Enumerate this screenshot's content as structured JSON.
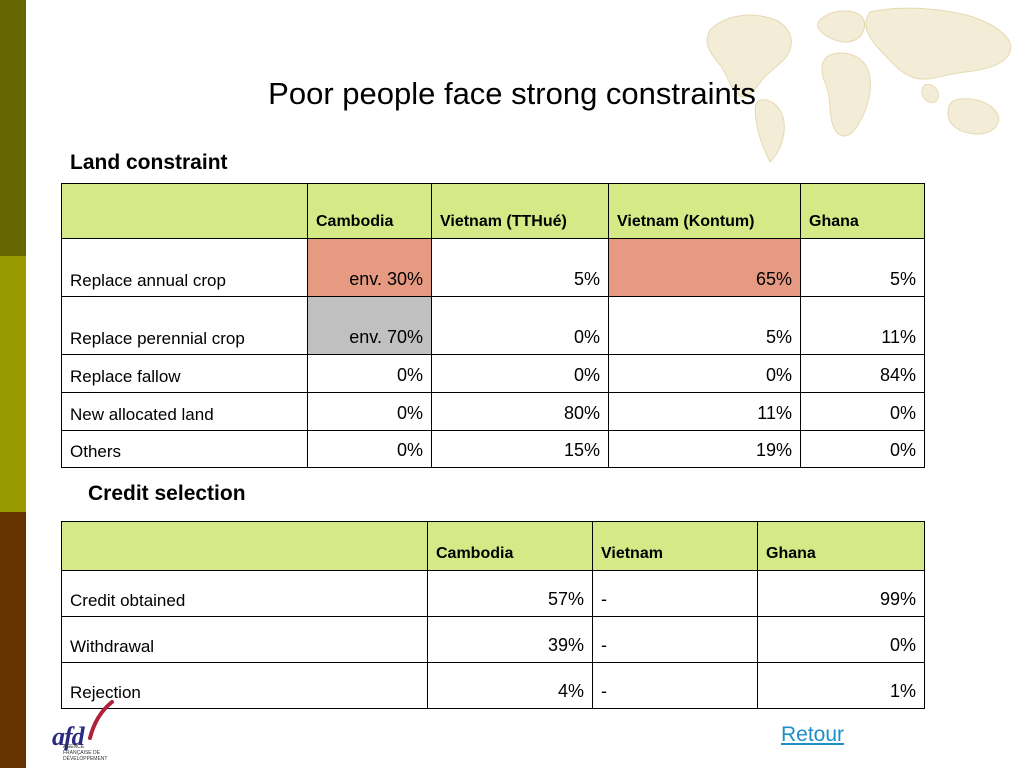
{
  "title": "Poor people face strong constraints",
  "land": {
    "heading": "Land constraint",
    "columns": [
      "",
      "Cambodia",
      "Vietnam (TTHué)",
      "Vietnam (Kontum)",
      "Ghana"
    ],
    "rows": [
      {
        "label": "Replace annual crop",
        "values": [
          "env. 30%",
          "5%",
          "65%",
          "5%"
        ]
      },
      {
        "label": "Replace perennial crop",
        "values": [
          "env. 70%",
          "0%",
          "5%",
          "11%"
        ]
      },
      {
        "label": "Replace fallow",
        "values": [
          "0%",
          "0%",
          "0%",
          "84%"
        ]
      },
      {
        "label": "New allocated land",
        "values": [
          "0%",
          "80%",
          "11%",
          "0%"
        ]
      },
      {
        "label": "Others",
        "values": [
          "0%",
          "15%",
          "19%",
          "0%"
        ]
      }
    ]
  },
  "credit": {
    "heading": "Credit selection",
    "columns": [
      "",
      "Cambodia",
      "Vietnam",
      "Ghana"
    ],
    "rows": [
      {
        "label": "Credit obtained",
        "values": [
          "57%",
          "-",
          "99%"
        ]
      },
      {
        "label": "Withdrawal",
        "values": [
          "39%",
          "-",
          "0%"
        ]
      },
      {
        "label": "Rejection",
        "values": [
          "4%",
          "-",
          "1%"
        ]
      }
    ]
  },
  "logo": {
    "text": "afd",
    "subtitle": "AGENCE FRANÇAISE DE DÉVELOPPEMENT"
  },
  "retour_link": "Retour",
  "colors": {
    "header_fill": "#d5ea86",
    "highlight_red": "#e59a81",
    "highlight_grey": "#c0c0c0",
    "bar_top": "#666600",
    "bar_middle": "#999900",
    "bar_bottom": "#663300",
    "link": "#1e90c8"
  }
}
